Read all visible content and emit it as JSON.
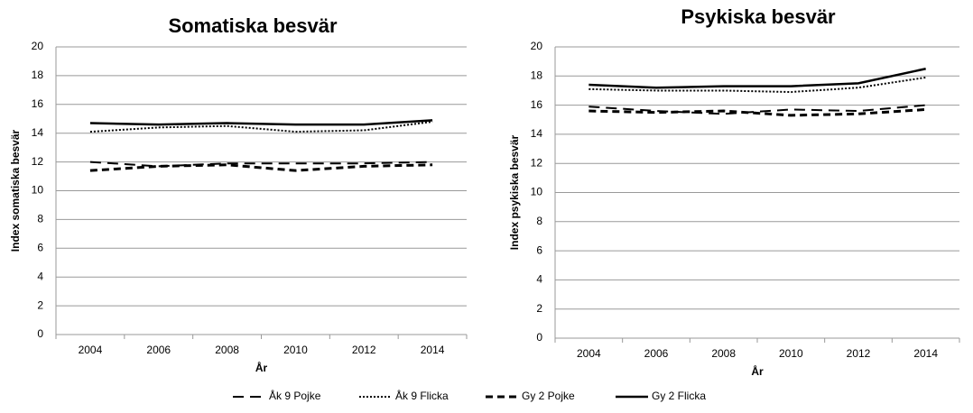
{
  "chart_data": [
    {
      "type": "line",
      "title": "Somatiska besvär",
      "x_label": "År",
      "y_label": "Index somatiska besvär",
      "categories": [
        "2004",
        "2006",
        "2008",
        "2010",
        "2012",
        "2014"
      ],
      "ylim": [
        0,
        20
      ],
      "yticks": [
        0,
        2,
        4,
        6,
        8,
        10,
        12,
        14,
        16,
        18,
        20
      ],
      "grid": true,
      "series": [
        {
          "name": "Åk 9 Pojke",
          "color": "#000000",
          "dash": "long-dash",
          "values": [
            12.0,
            11.7,
            11.9,
            11.9,
            11.9,
            12.0
          ]
        },
        {
          "name": "Åk 9 Flicka",
          "color": "#000000",
          "dash": "dotted",
          "values": [
            14.1,
            14.4,
            14.5,
            14.1,
            14.2,
            14.8
          ]
        },
        {
          "name": "Gy 2 Pojke",
          "color": "#000000",
          "dash": "dashed",
          "values": [
            11.4,
            11.7,
            11.8,
            11.4,
            11.7,
            11.8
          ]
        },
        {
          "name": "Gy 2 Flicka",
          "color": "#000000",
          "dash": "solid",
          "values": [
            14.7,
            14.6,
            14.7,
            14.6,
            14.6,
            14.9
          ]
        }
      ]
    },
    {
      "type": "line",
      "title": "Psykiska besvär",
      "x_label": "År",
      "y_label": "Index psykiska  besvär",
      "categories": [
        "2004",
        "2006",
        "2008",
        "2010",
        "2012",
        "2014"
      ],
      "ylim": [
        0,
        20
      ],
      "yticks": [
        0,
        2,
        4,
        6,
        8,
        10,
        12,
        14,
        16,
        18,
        20
      ],
      "grid": true,
      "series": [
        {
          "name": "Åk 9 Pojke",
          "color": "#000000",
          "dash": "long-dash",
          "values": [
            15.9,
            15.6,
            15.4,
            15.7,
            15.6,
            16.0
          ]
        },
        {
          "name": "Åk 9 Flicka",
          "color": "#000000",
          "dash": "dotted",
          "values": [
            17.1,
            17.0,
            17.0,
            16.9,
            17.2,
            17.9
          ]
        },
        {
          "name": "Gy 2 Pojke",
          "color": "#000000",
          "dash": "dashed",
          "values": [
            15.6,
            15.5,
            15.6,
            15.3,
            15.4,
            15.7
          ]
        },
        {
          "name": "Gy 2 Flicka",
          "color": "#000000",
          "dash": "solid",
          "values": [
            17.4,
            17.2,
            17.3,
            17.3,
            17.5,
            18.5
          ]
        }
      ]
    }
  ]
}
